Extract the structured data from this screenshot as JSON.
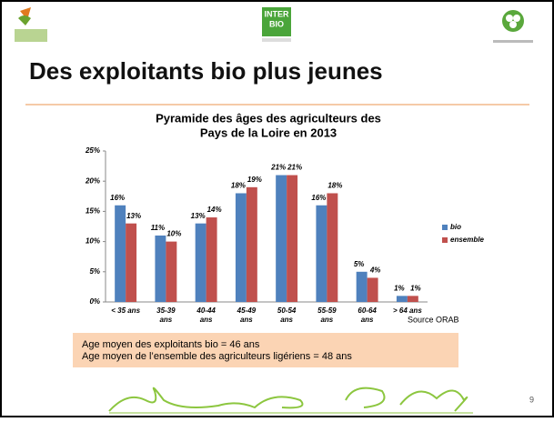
{
  "slide_title": "Des exploitants bio plus jeunes",
  "logo_text": [
    "INTER",
    "BIO"
  ],
  "source": "Source ORAB",
  "note": [
    "Age moyen des exploitants bio = 46 ans",
    "Age moyen de l’ensemble des agriculteurs ligériens  = 48 ans"
  ],
  "page_number": "9",
  "chart_data": {
    "type": "bar",
    "title": [
      "Pyramide des âges des agriculteurs des",
      "Pays de la Loire en 2013"
    ],
    "categories": [
      "< 35 ans",
      "35-39 ans",
      "40-44 ans",
      "45-49 ans",
      "50-54 ans",
      "55-59 ans",
      "60-64 ans",
      "> 64 ans"
    ],
    "series": [
      {
        "name": "bio",
        "color": "#4f81bd",
        "values": [
          16,
          11,
          13,
          18,
          21,
          16,
          5,
          1
        ],
        "value_labels": [
          "16%",
          "11%",
          "13%",
          "18%",
          "21%",
          "16%",
          "5%",
          "1%"
        ]
      },
      {
        "name": "ensemble",
        "color": "#c0504d",
        "values": [
          13,
          10,
          14,
          19,
          21,
          18,
          4,
          1
        ],
        "value_labels": [
          "13%",
          "10%",
          "14%",
          "19%",
          "21%",
          "18%",
          "4%",
          "1%"
        ]
      }
    ],
    "ylim": [
      0,
      25
    ],
    "yticks": [
      {
        "value": 0,
        "label": "0%"
      },
      {
        "value": 5,
        "label": "5%"
      },
      {
        "value": 10,
        "label": "10%"
      },
      {
        "value": 15,
        "label": "15%"
      },
      {
        "value": 20,
        "label": "20%"
      },
      {
        "value": 25,
        "label": "25%"
      }
    ],
    "legend": "right"
  }
}
